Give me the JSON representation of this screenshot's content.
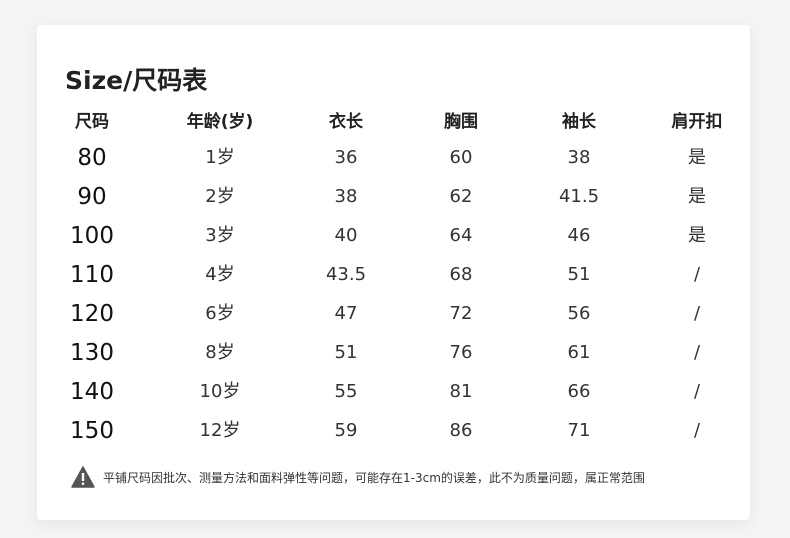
{
  "title": "Size/尺码表",
  "headers": [
    "尺码",
    "年龄(岁)",
    "衣长",
    "胸围",
    "袖长",
    "肩开扣"
  ],
  "rows": [
    [
      "80",
      "1岁",
      "36",
      "60",
      "38",
      "是"
    ],
    [
      "90",
      "2岁",
      "38",
      "62",
      "41.5",
      "是"
    ],
    [
      "100",
      "3岁",
      "40",
      "64",
      "46",
      "是"
    ],
    [
      "110",
      "4岁",
      "43.5",
      "68",
      "51",
      "/"
    ],
    [
      "120",
      "6岁",
      "47",
      "72",
      "56",
      "/"
    ],
    [
      "130",
      "8岁",
      "51",
      "76",
      "61",
      "/"
    ],
    [
      "140",
      "10岁",
      "55",
      "81",
      "66",
      "/"
    ],
    [
      "150",
      "12岁",
      "59",
      "86",
      "71",
      "/"
    ]
  ],
  "note": {
    "icon": "warning-icon",
    "text": "平铺尺码因批次、测量方法和面料弹性等问题，可能存在1-3cm的误差，此不为质量问题，属正常范围"
  }
}
